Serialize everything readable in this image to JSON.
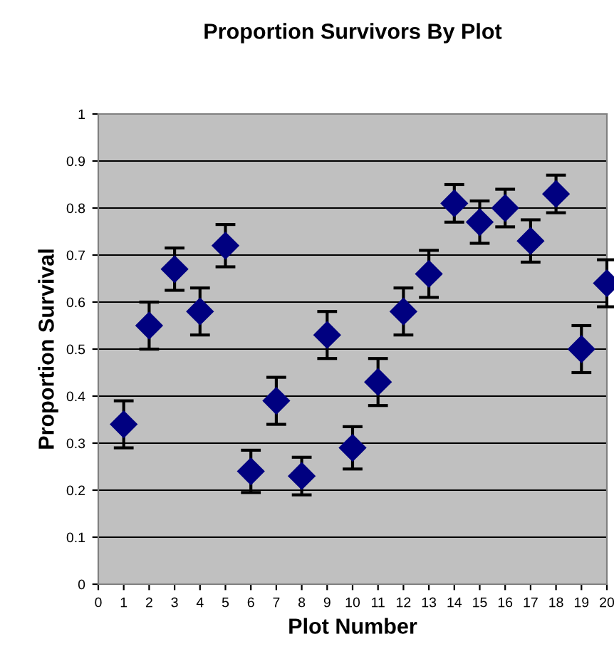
{
  "chart_data": {
    "type": "scatter",
    "title": "Proportion Survivors By Plot",
    "xlabel": "Plot Number",
    "ylabel": "Proportion Survival",
    "x": [
      1,
      2,
      3,
      4,
      5,
      6,
      7,
      8,
      9,
      10,
      11,
      12,
      13,
      14,
      15,
      16,
      17,
      18,
      19,
      20
    ],
    "values": [
      0.34,
      0.55,
      0.67,
      0.58,
      0.72,
      0.24,
      0.39,
      0.23,
      0.53,
      0.29,
      0.43,
      0.58,
      0.66,
      0.81,
      0.77,
      0.8,
      0.73,
      0.83,
      0.5,
      0.64
    ],
    "errors": [
      0.05,
      0.05,
      0.045,
      0.05,
      0.045,
      0.045,
      0.05,
      0.04,
      0.05,
      0.045,
      0.05,
      0.05,
      0.05,
      0.04,
      0.045,
      0.04,
      0.045,
      0.04,
      0.05,
      0.05
    ],
    "color": "#000080",
    "marker": "diamond",
    "grid": "y",
    "xlim": [
      0,
      20
    ],
    "xticks": [
      0,
      1,
      2,
      3,
      4,
      5,
      6,
      7,
      8,
      9,
      10,
      11,
      12,
      13,
      14,
      15,
      16,
      17,
      18,
      19,
      20
    ],
    "ylim": [
      0,
      1
    ],
    "yticks": [
      0,
      0.1,
      0.2,
      0.3,
      0.4,
      0.5,
      0.6,
      0.7,
      0.8,
      0.9,
      1
    ]
  }
}
